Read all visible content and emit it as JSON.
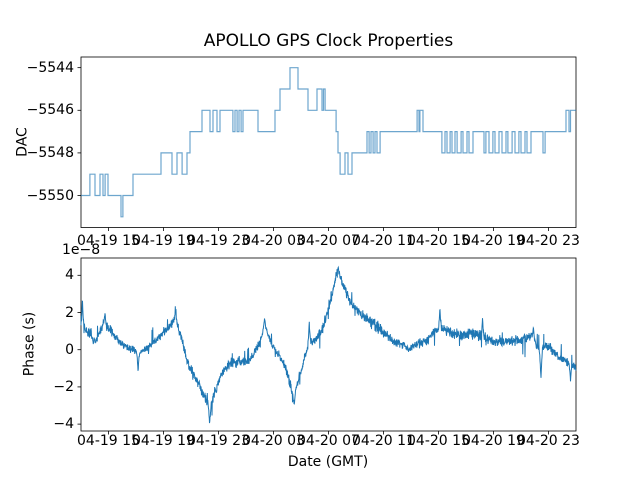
{
  "figure": {
    "background": "#ffffff",
    "line_color": "#1f77b4",
    "axes_color": "#000000"
  },
  "chart_data": [
    {
      "type": "line",
      "subtype": "step",
      "title": "APOLLO GPS Clock Properties",
      "ylabel": "DAC",
      "grid": false,
      "legend": "none",
      "xlim_hours": [
        0,
        36
      ],
      "ylim": [
        -5551.5,
        -5543.5
      ],
      "yticks": {
        "values": [
          -5544,
          -5546,
          -5548,
          -5550
        ],
        "labels": [
          "−5544",
          "−5546",
          "−5548",
          "−5550"
        ]
      },
      "xticks": {
        "hours": [
          2,
          6,
          10,
          14,
          18,
          22,
          26,
          30,
          34
        ],
        "labels": [
          "04-19 15",
          "04-19 19",
          "04-19 23",
          "04-20 03",
          "04-20 07",
          "04-20 11",
          "04-20 15",
          "04-20 19",
          "04-20 23"
        ]
      },
      "step_points": [
        [
          0.0,
          -5550
        ],
        [
          0.65,
          -5549
        ],
        [
          1.02,
          -5550
        ],
        [
          1.38,
          -5549
        ],
        [
          1.6,
          -5550
        ],
        [
          1.75,
          -5549
        ],
        [
          1.96,
          -5550
        ],
        [
          2.91,
          -5551
        ],
        [
          3.05,
          -5550
        ],
        [
          3.78,
          -5549
        ],
        [
          5.82,
          -5548
        ],
        [
          6.62,
          -5549
        ],
        [
          6.98,
          -5548
        ],
        [
          7.35,
          -5549
        ],
        [
          7.71,
          -5548
        ],
        [
          7.93,
          -5547
        ],
        [
          8.8,
          -5546
        ],
        [
          9.38,
          -5547
        ],
        [
          9.6,
          -5546
        ],
        [
          9.89,
          -5547
        ],
        [
          10.11,
          -5546
        ],
        [
          11.05,
          -5547
        ],
        [
          11.2,
          -5546
        ],
        [
          11.35,
          -5547
        ],
        [
          11.49,
          -5546
        ],
        [
          11.64,
          -5547
        ],
        [
          11.78,
          -5546
        ],
        [
          12.87,
          -5547
        ],
        [
          14.11,
          -5546
        ],
        [
          14.47,
          -5545
        ],
        [
          15.2,
          -5544
        ],
        [
          15.78,
          -5545
        ],
        [
          16.51,
          -5546
        ],
        [
          17.16,
          -5545
        ],
        [
          17.53,
          -5546
        ],
        [
          17.64,
          -5545
        ],
        [
          17.75,
          -5546
        ],
        [
          18.55,
          -5547
        ],
        [
          18.69,
          -5548
        ],
        [
          18.84,
          -5549
        ],
        [
          19.2,
          -5548
        ],
        [
          19.42,
          -5549
        ],
        [
          19.71,
          -5548
        ],
        [
          20.8,
          -5547
        ],
        [
          20.95,
          -5548
        ],
        [
          21.09,
          -5547
        ],
        [
          21.24,
          -5548
        ],
        [
          21.38,
          -5547
        ],
        [
          21.53,
          -5548
        ],
        [
          21.75,
          -5547
        ],
        [
          24.44,
          -5546
        ],
        [
          24.58,
          -5547
        ],
        [
          24.65,
          -5546
        ],
        [
          24.87,
          -5547
        ],
        [
          26.25,
          -5548
        ],
        [
          26.47,
          -5547
        ],
        [
          26.62,
          -5548
        ],
        [
          26.84,
          -5547
        ],
        [
          26.98,
          -5548
        ],
        [
          27.2,
          -5547
        ],
        [
          27.35,
          -5548
        ],
        [
          27.64,
          -5547
        ],
        [
          27.78,
          -5548
        ],
        [
          28.07,
          -5547
        ],
        [
          28.22,
          -5548
        ],
        [
          28.51,
          -5547
        ],
        [
          29.31,
          -5548
        ],
        [
          29.45,
          -5547
        ],
        [
          29.67,
          -5548
        ],
        [
          29.96,
          -5547
        ],
        [
          30.11,
          -5548
        ],
        [
          30.4,
          -5547
        ],
        [
          30.62,
          -5548
        ],
        [
          30.91,
          -5547
        ],
        [
          31.05,
          -5548
        ],
        [
          31.35,
          -5547
        ],
        [
          31.56,
          -5548
        ],
        [
          31.85,
          -5547
        ],
        [
          32.0,
          -5548
        ],
        [
          32.29,
          -5547
        ],
        [
          32.44,
          -5548
        ],
        [
          32.73,
          -5547
        ],
        [
          33.6,
          -5548
        ],
        [
          33.75,
          -5547
        ],
        [
          35.27,
          -5546
        ],
        [
          35.49,
          -5547
        ],
        [
          35.6,
          -5546
        ],
        [
          36.0,
          -5546
        ]
      ]
    },
    {
      "type": "line",
      "subtype": "noisy",
      "ylabel": "Phase (s)",
      "xlabel": "Date (GMT)",
      "offset_text": "1e−8",
      "unit_scale": 1e-08,
      "grid": false,
      "legend": "none",
      "xlim_hours": [
        0,
        36
      ],
      "ylim": [
        -4.37,
        4.93
      ],
      "yticks": {
        "values": [
          4,
          2,
          0,
          -2,
          -4
        ],
        "labels": [
          "4",
          "2",
          "0",
          "−2",
          "−4"
        ]
      },
      "xticks": {
        "hours": [
          2,
          6,
          10,
          14,
          18,
          22,
          26,
          30,
          34
        ],
        "labels": [
          "04-19 15",
          "04-19 19",
          "04-19 23",
          "04-20 03",
          "04-20 07",
          "04-20 11",
          "04-20 15",
          "04-20 19",
          "04-20 23"
        ]
      },
      "trend_points": [
        [
          0.0,
          1.3
        ],
        [
          0.5,
          0.95
        ],
        [
          1.0,
          0.45
        ],
        [
          1.6,
          1.4
        ],
        [
          2.1,
          1.1
        ],
        [
          2.7,
          0.45
        ],
        [
          3.4,
          0.1
        ],
        [
          4.2,
          -0.2
        ],
        [
          4.8,
          0.1
        ],
        [
          5.4,
          0.5
        ],
        [
          5.9,
          0.8
        ],
        [
          6.3,
          1.1
        ],
        [
          6.85,
          1.7
        ],
        [
          7.35,
          0.5
        ],
        [
          7.7,
          -0.6
        ],
        [
          8.5,
          -1.8
        ],
        [
          9.0,
          -2.6
        ],
        [
          9.35,
          -3.2
        ],
        [
          9.7,
          -2.3
        ],
        [
          10.4,
          -1.0
        ],
        [
          11.2,
          -0.6
        ],
        [
          11.9,
          -0.7
        ],
        [
          12.4,
          -0.45
        ],
        [
          13.0,
          0.3
        ],
        [
          13.35,
          1.3
        ],
        [
          13.9,
          0.3
        ],
        [
          14.4,
          -0.3
        ],
        [
          14.9,
          -1.0
        ],
        [
          15.45,
          -2.5
        ],
        [
          15.9,
          -1.4
        ],
        [
          16.3,
          -0.3
        ],
        [
          16.6,
          0.3
        ],
        [
          17.1,
          0.55
        ],
        [
          17.6,
          1.2
        ],
        [
          18.2,
          2.8
        ],
        [
          18.5,
          3.9
        ],
        [
          18.7,
          4.15
        ],
        [
          19.1,
          3.4
        ],
        [
          19.6,
          2.5
        ],
        [
          20.2,
          2.0
        ],
        [
          20.9,
          1.6
        ],
        [
          21.6,
          1.2
        ],
        [
          22.1,
          0.9
        ],
        [
          22.7,
          0.45
        ],
        [
          23.4,
          0.3
        ],
        [
          23.8,
          0.05
        ],
        [
          24.5,
          0.3
        ],
        [
          25.2,
          0.5
        ],
        [
          25.7,
          1.0
        ],
        [
          26.3,
          1.1
        ],
        [
          27.0,
          0.9
        ],
        [
          27.7,
          0.8
        ],
        [
          28.4,
          0.9
        ],
        [
          29.2,
          0.7
        ],
        [
          29.9,
          0.5
        ],
        [
          30.6,
          0.4
        ],
        [
          31.3,
          0.45
        ],
        [
          32.0,
          0.55
        ],
        [
          32.8,
          0.75
        ],
        [
          33.4,
          -0.2
        ],
        [
          33.8,
          0.3
        ],
        [
          34.2,
          0.0
        ],
        [
          34.9,
          -0.45
        ],
        [
          35.5,
          -0.7
        ],
        [
          36.0,
          -1.0
        ]
      ],
      "spikes": [
        [
          0.1,
          2.8
        ],
        [
          1.75,
          2.0
        ],
        [
          4.15,
          -1.2
        ],
        [
          6.9,
          2.2
        ],
        [
          9.35,
          -4.0
        ],
        [
          13.35,
          1.7
        ],
        [
          15.5,
          -3.0
        ],
        [
          16.6,
          1.5
        ],
        [
          18.7,
          4.45
        ],
        [
          26.1,
          2.3
        ],
        [
          29.2,
          1.7
        ],
        [
          32.9,
          1.25
        ],
        [
          33.45,
          -1.6
        ],
        [
          35.6,
          -1.7
        ]
      ],
      "noise_amplitude": 0.3
    }
  ]
}
